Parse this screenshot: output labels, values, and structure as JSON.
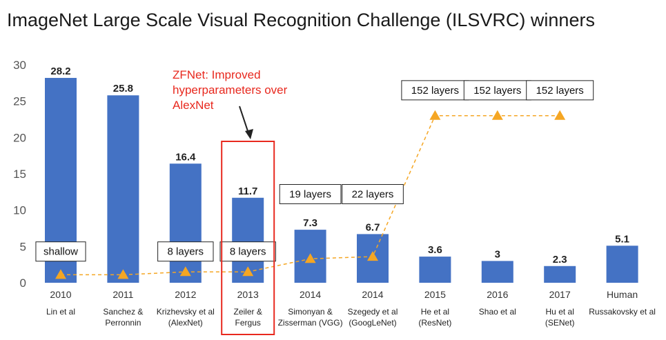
{
  "chart_data": {
    "type": "bar",
    "title": "ImageNet Large Scale Visual Recognition Challenge (ILSVRC) winners",
    "ylim": [
      0,
      30
    ],
    "yticks": [
      0,
      5,
      10,
      15,
      20,
      25,
      30
    ],
    "grid": false,
    "categories": [
      {
        "year": "2010",
        "author": [
          "Lin et al"
        ]
      },
      {
        "year": "2011",
        "author": [
          "Sanchez &",
          "Perronnin"
        ]
      },
      {
        "year": "2012",
        "author": [
          "Krizhevsky et al",
          "(AlexNet)"
        ]
      },
      {
        "year": "2013",
        "author": [
          "Zeiler &",
          "Fergus"
        ]
      },
      {
        "year": "2014",
        "author": [
          "Simonyan &",
          "Zisserman (VGG)"
        ]
      },
      {
        "year": "2014",
        "author": [
          "Szegedy et al",
          "(GoogLeNet)"
        ]
      },
      {
        "year": "2015",
        "author": [
          "He et al",
          "(ResNet)"
        ]
      },
      {
        "year": "2016",
        "author": [
          "Shao et al"
        ]
      },
      {
        "year": "2017",
        "author": [
          "Hu et al",
          "(SENet)"
        ]
      },
      {
        "year": "Human",
        "author": [
          "Russakovsky et al"
        ]
      }
    ],
    "values": [
      28.2,
      25.8,
      16.4,
      11.7,
      7.3,
      6.7,
      3.6,
      3,
      2.3,
      5.1
    ],
    "value_labels": [
      "28.2",
      "25.8",
      "16.4",
      "11.7",
      "7.3",
      "6.7",
      "3.6",
      "3",
      "2.3",
      "5.1"
    ],
    "bar_color": "#4472c4",
    "depth_line": {
      "color": "#f5a623",
      "points": [
        {
          "index": 0,
          "y": 1.1
        },
        {
          "index": 1,
          "y": 1.1
        },
        {
          "index": 2,
          "y": 1.5
        },
        {
          "index": 3,
          "y": 1.5
        },
        {
          "index": 4,
          "y": 3.3
        },
        {
          "index": 5,
          "y": 3.6
        },
        {
          "index": 6,
          "y": 23
        },
        {
          "index": 7,
          "y": 23
        },
        {
          "index": 8,
          "y": 23
        }
      ]
    },
    "layer_labels": [
      {
        "index": 0,
        "text": "shallow",
        "y": 4.3
      },
      {
        "index": 2,
        "text": "8 layers",
        "y": 4.3
      },
      {
        "index": 3,
        "text": "8 layers",
        "y": 4.3
      },
      {
        "index": 4,
        "text": "19 layers",
        "y": 12.2
      },
      {
        "index": 5,
        "text": "22 layers",
        "y": 12.2
      },
      {
        "index": 6,
        "text": "152 layers",
        "y": 26.5
      },
      {
        "index": 7,
        "text": "152 layers",
        "y": 26.5
      },
      {
        "index": 8,
        "text": "152 layers",
        "y": 26.5
      }
    ],
    "annotation": {
      "lines": [
        "ZFNet: Improved",
        "hyperparameters over",
        "AlexNet"
      ],
      "color": "#e8281e",
      "highlight_index": 3
    }
  }
}
